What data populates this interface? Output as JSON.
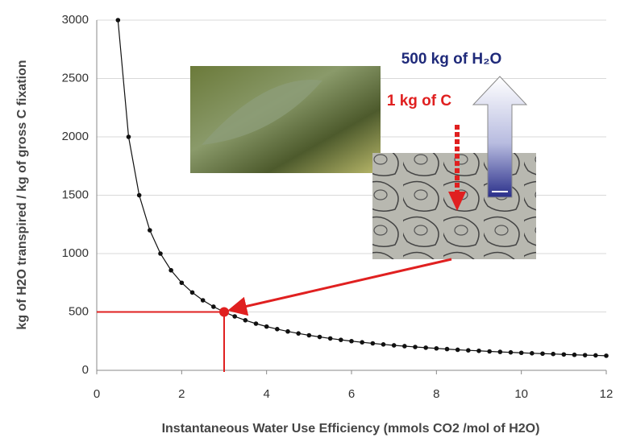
{
  "chart_data": {
    "type": "line",
    "x_label": "Instantaneous Water Use Efficiency (mmols CO2 /mol of H2O)",
    "y_label": "kg of H2O transpired / kg of gross C fixation",
    "x": [
      0.5,
      0.75,
      1,
      1.25,
      1.5,
      1.75,
      2,
      2.25,
      2.5,
      2.75,
      3,
      3.25,
      3.5,
      3.75,
      4,
      4.25,
      4.5,
      4.75,
      5,
      5.25,
      5.5,
      5.75,
      6,
      6.25,
      6.5,
      6.75,
      7,
      7.25,
      7.5,
      7.75,
      8,
      8.25,
      8.5,
      8.75,
      9,
      9.25,
      9.5,
      9.75,
      10,
      10.25,
      10.5,
      10.75,
      11,
      11.25,
      11.5,
      11.75,
      12
    ],
    "series": [
      {
        "color": "#111111",
        "values": [
          3000,
          2000,
          1500,
          1200,
          1000,
          857,
          750,
          667,
          600,
          545,
          500,
          462,
          429,
          400,
          375,
          353,
          333,
          316,
          300,
          286,
          273,
          261,
          250,
          240,
          231,
          222,
          214,
          207,
          200,
          194,
          188,
          182,
          176,
          171,
          167,
          162,
          158,
          154,
          150,
          146,
          143,
          140,
          136,
          133,
          130,
          128,
          125
        ]
      }
    ],
    "highlight": {
      "x": 3,
      "y": 500,
      "color": "#e02020"
    },
    "annotations": [
      {
        "text": "500 kg of H₂O",
        "color": "#1f2a7a"
      },
      {
        "text": "1 kg of C",
        "color": "#e02020"
      }
    ],
    "xlim": [
      0,
      12
    ],
    "xticks": [
      0,
      2,
      4,
      6,
      8,
      10,
      12
    ],
    "ylim": [
      0,
      3000
    ],
    "yticks": [
      0,
      500,
      1000,
      1500,
      2000,
      2500,
      3000
    ],
    "grid": true
  }
}
